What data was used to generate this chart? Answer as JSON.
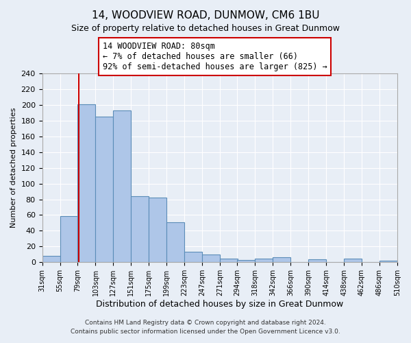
{
  "title": "14, WOODVIEW ROAD, DUNMOW, CM6 1BU",
  "subtitle": "Size of property relative to detached houses in Great Dunmow",
  "xlabel": "Distribution of detached houses by size in Great Dunmow",
  "ylabel": "Number of detached properties",
  "bin_edges": [
    31,
    55,
    79,
    103,
    127,
    151,
    175,
    199,
    223,
    247,
    271,
    294,
    318,
    342,
    366,
    390,
    414,
    438,
    462,
    486,
    510
  ],
  "bin_labels": [
    "31sqm",
    "55sqm",
    "79sqm",
    "103sqm",
    "127sqm",
    "151sqm",
    "175sqm",
    "199sqm",
    "223sqm",
    "247sqm",
    "271sqm",
    "294sqm",
    "318sqm",
    "342sqm",
    "366sqm",
    "390sqm",
    "414sqm",
    "438sqm",
    "462sqm",
    "486sqm",
    "510sqm"
  ],
  "counts": [
    8,
    59,
    201,
    185,
    193,
    84,
    82,
    51,
    13,
    10,
    5,
    3,
    5,
    6,
    0,
    4,
    0,
    5,
    0,
    2
  ],
  "bar_color": "#aec6e8",
  "bar_edge_color": "#5b8db8",
  "property_line_x": 80,
  "property_line_color": "#cc0000",
  "annotation_line1": "14 WOODVIEW ROAD: 80sqm",
  "annotation_line2": "← 7% of detached houses are smaller (66)",
  "annotation_line3": "92% of semi-detached houses are larger (825) →",
  "annotation_box_color": "#ffffff",
  "annotation_box_edge_color": "#cc0000",
  "ylim": [
    0,
    240
  ],
  "yticks": [
    0,
    20,
    40,
    60,
    80,
    100,
    120,
    140,
    160,
    180,
    200,
    220,
    240
  ],
  "footer_line1": "Contains HM Land Registry data © Crown copyright and database right 2024.",
  "footer_line2": "Contains public sector information licensed under the Open Government Licence v3.0.",
  "bg_color": "#e8eef6",
  "grid_color": "#ffffff",
  "title_fontsize": 11,
  "subtitle_fontsize": 9,
  "annotation_fontsize": 8.5
}
